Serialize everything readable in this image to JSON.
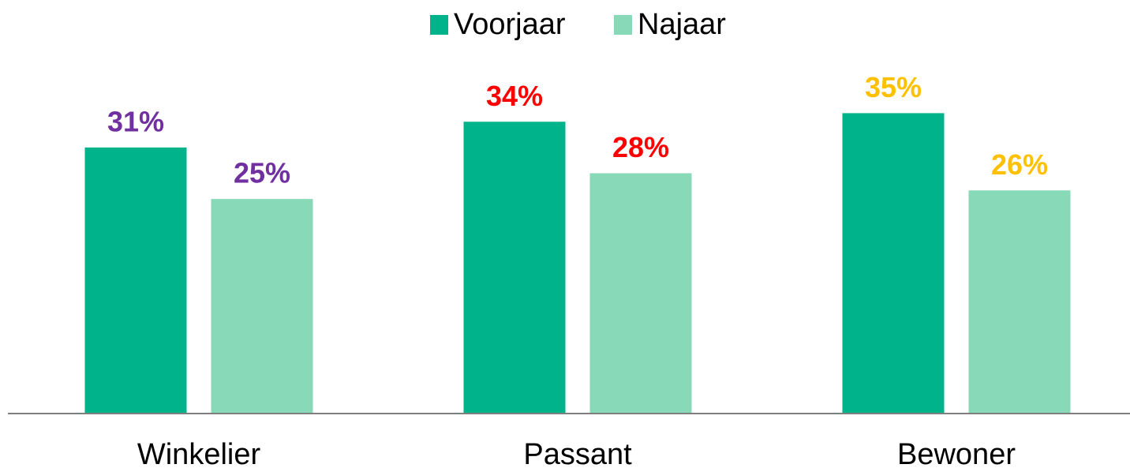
{
  "chart_data": {
    "type": "bar",
    "categories": [
      "Winkelier",
      "Passant",
      "Bewoner"
    ],
    "series": [
      {
        "name": "Voorjaar",
        "color": "#00b38a",
        "values": [
          31,
          34,
          35
        ],
        "value_labels": [
          "31%",
          "34%",
          "35%"
        ]
      },
      {
        "name": "Najaar",
        "color": "#88d9b8",
        "values": [
          25,
          28,
          26
        ],
        "value_labels": [
          "25%",
          "28%",
          "26%"
        ]
      }
    ],
    "label_colors": [
      "#7030a0",
      "#ff0000",
      "#ffc000"
    ],
    "ylim": [
      0,
      48
    ],
    "legend": "top"
  }
}
